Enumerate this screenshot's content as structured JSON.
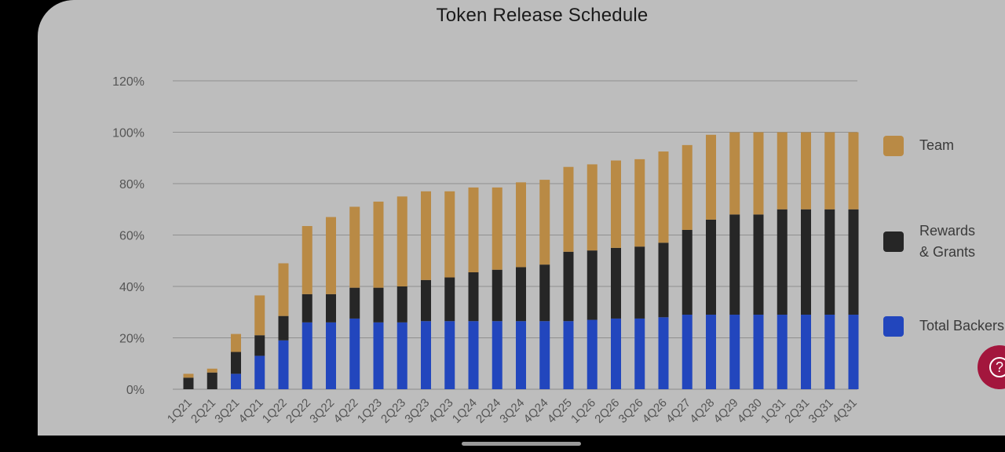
{
  "chart_data": {
    "type": "bar",
    "stacked": true,
    "title": "Token Release Schedule",
    "xlabel": "",
    "ylabel": "",
    "ylim": [
      0,
      120
    ],
    "yticks": [
      "0%",
      "20%",
      "40%",
      "60%",
      "80%",
      "100%",
      "120%"
    ],
    "ytick_values": [
      0,
      20,
      40,
      60,
      80,
      100,
      120
    ],
    "grid": true,
    "legend_position": "right",
    "categories": [
      "1Q21",
      "2Q21",
      "3Q21",
      "4Q21",
      "1Q22",
      "2Q22",
      "3Q22",
      "4Q22",
      "1Q23",
      "2Q23",
      "3Q23",
      "4Q23",
      "1Q24",
      "2Q24",
      "3Q24",
      "4Q24",
      "4Q25",
      "1Q26",
      "2Q26",
      "3Q26",
      "4Q26",
      "4Q27",
      "4Q28",
      "4Q29",
      "4Q30",
      "1Q31",
      "2Q31",
      "3Q31",
      "4Q31"
    ],
    "series": [
      {
        "name": "Total Backers",
        "color": "#2246bd",
        "values": [
          0,
          0,
          6,
          13,
          19,
          26,
          26,
          27.5,
          26,
          26,
          26.5,
          26.5,
          26.5,
          26.5,
          26.5,
          26.5,
          26.5,
          27,
          27.5,
          27.5,
          28,
          29,
          29,
          29,
          29,
          29,
          29,
          29,
          29
        ]
      },
      {
        "name": "Rewards & Grants",
        "color": "#262626",
        "values": [
          4.5,
          6.5,
          8.5,
          8,
          9.5,
          11,
          11,
          12,
          13.5,
          14,
          16,
          17,
          19,
          20,
          21,
          22,
          27,
          27,
          27.5,
          28,
          29,
          33,
          37,
          39,
          39,
          41,
          41,
          41,
          41
        ]
      },
      {
        "name": "Team",
        "color": "#b98a45",
        "values": [
          1.5,
          1.5,
          7,
          15.5,
          20.5,
          26.5,
          30,
          31.5,
          33.5,
          35,
          34.5,
          33.5,
          33,
          32,
          33,
          33,
          33,
          33.5,
          34,
          34,
          35.5,
          33,
          33,
          32,
          32,
          30,
          30,
          30,
          30
        ]
      }
    ]
  },
  "legend": {
    "items": [
      {
        "label": "Team",
        "color": "#b98a45"
      },
      {
        "label": "Rewards\n& Grants",
        "color": "#262626"
      },
      {
        "label": "Total Backers",
        "color": "#2246bd"
      }
    ]
  },
  "help_button": {
    "icon": "question-icon",
    "glyph": "?",
    "color": "#a3163d"
  }
}
